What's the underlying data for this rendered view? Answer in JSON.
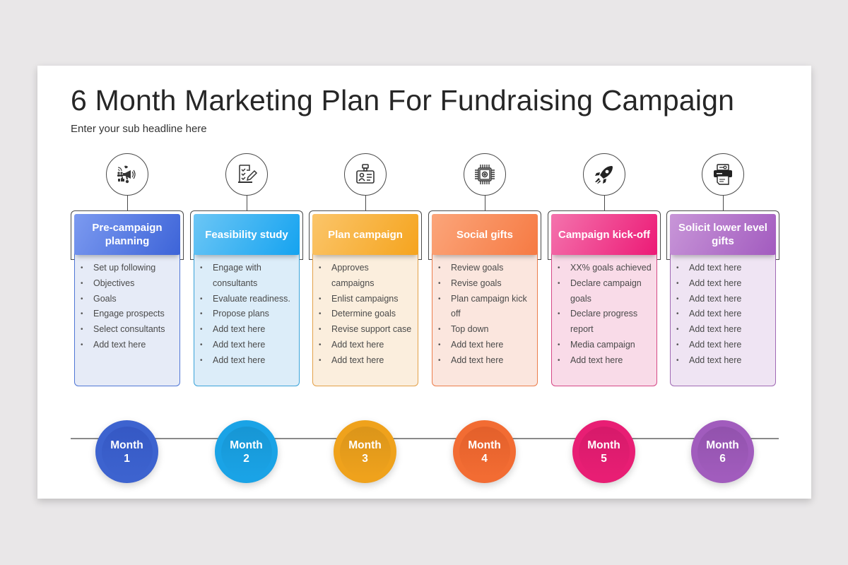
{
  "slide": {
    "title": "6 Month Marketing Plan For Fundraising Campaign",
    "subtitle": "Enter your sub headline here"
  },
  "columns": [
    {
      "icon": "megaphone-social-icon",
      "header": "Pre-campaign planning",
      "color_start": "#7c9af0",
      "color_end": "#3d64d8",
      "body_bg": "#e6ebf7",
      "border": "#4f76d6",
      "items": [
        "Set up following",
        "Objectives",
        "Goals",
        "Engage prospects",
        "Select consultants",
        "Add text here"
      ],
      "month_label": "Month",
      "month_number": "1",
      "month_outer": "#3d63cf",
      "month_inner": "#3558c4"
    },
    {
      "icon": "checklist-pen-icon",
      "header": "Feasibility study",
      "color_start": "#6cc6f5",
      "color_end": "#15a3f0",
      "body_bg": "#dcedf9",
      "border": "#3aa3d9",
      "items": [
        "Engage with consultants",
        "Evaluate readiness.",
        "Propose plans",
        "Add text here",
        "Add text here",
        "Add text here"
      ],
      "month_label": "Month",
      "month_number": "2",
      "month_outer": "#1aa3e6",
      "month_inner": "#1796d4"
    },
    {
      "icon": "id-badge-icon",
      "header": "Plan campaign",
      "color_start": "#fbc56a",
      "color_end": "#f5a41e",
      "body_bg": "#fbeedd",
      "border": "#e3a048",
      "items": [
        "Approves campaigns",
        "Enlist campaigns",
        "Determine goals",
        "Revise support case",
        "Add text here",
        "Add text here"
      ],
      "month_label": "Month",
      "month_number": "3",
      "month_outer": "#efa21c",
      "month_inner": "#db951a"
    },
    {
      "icon": "chip-gear-icon",
      "header": "Social gifts",
      "color_start": "#fba57a",
      "color_end": "#f67a43",
      "body_bg": "#fbe6de",
      "border": "#ec7d4b",
      "items": [
        "Review goals",
        "Revise goals",
        "Plan campaign kick off",
        "Top down",
        "Add text here",
        "Add text here"
      ],
      "month_label": "Month",
      "month_number": "4",
      "month_outer": "#f26c33",
      "month_inner": "#e3602b"
    },
    {
      "icon": "rocket-icon",
      "header": "Campaign kick-off",
      "color_start": "#f473ad",
      "color_end": "#ec1a76",
      "body_bg": "#f9dbe8",
      "border": "#d54886",
      "items": [
        "XX% goals achieved",
        "Declare  campaign goals",
        "Declare progress report",
        "Media campaign",
        "Add text here"
      ],
      "month_label": "Month",
      "month_number": "5",
      "month_outer": "#e81e74",
      "month_inner": "#d61a6a"
    },
    {
      "icon": "printer-key-icon",
      "header": "Solicit lower level gifts",
      "color_start": "#c896d8",
      "color_end": "#a25bbf",
      "body_bg": "#efe4f3",
      "border": "#a06ab4",
      "items": [
        "Add text here",
        "Add text here",
        "Add text here",
        "Add text here",
        "Add text here",
        "Add text here",
        "Add text here"
      ],
      "month_label": "Month",
      "month_number": "6",
      "month_outer": "#a15cbd",
      "month_inner": "#9252ad"
    }
  ]
}
